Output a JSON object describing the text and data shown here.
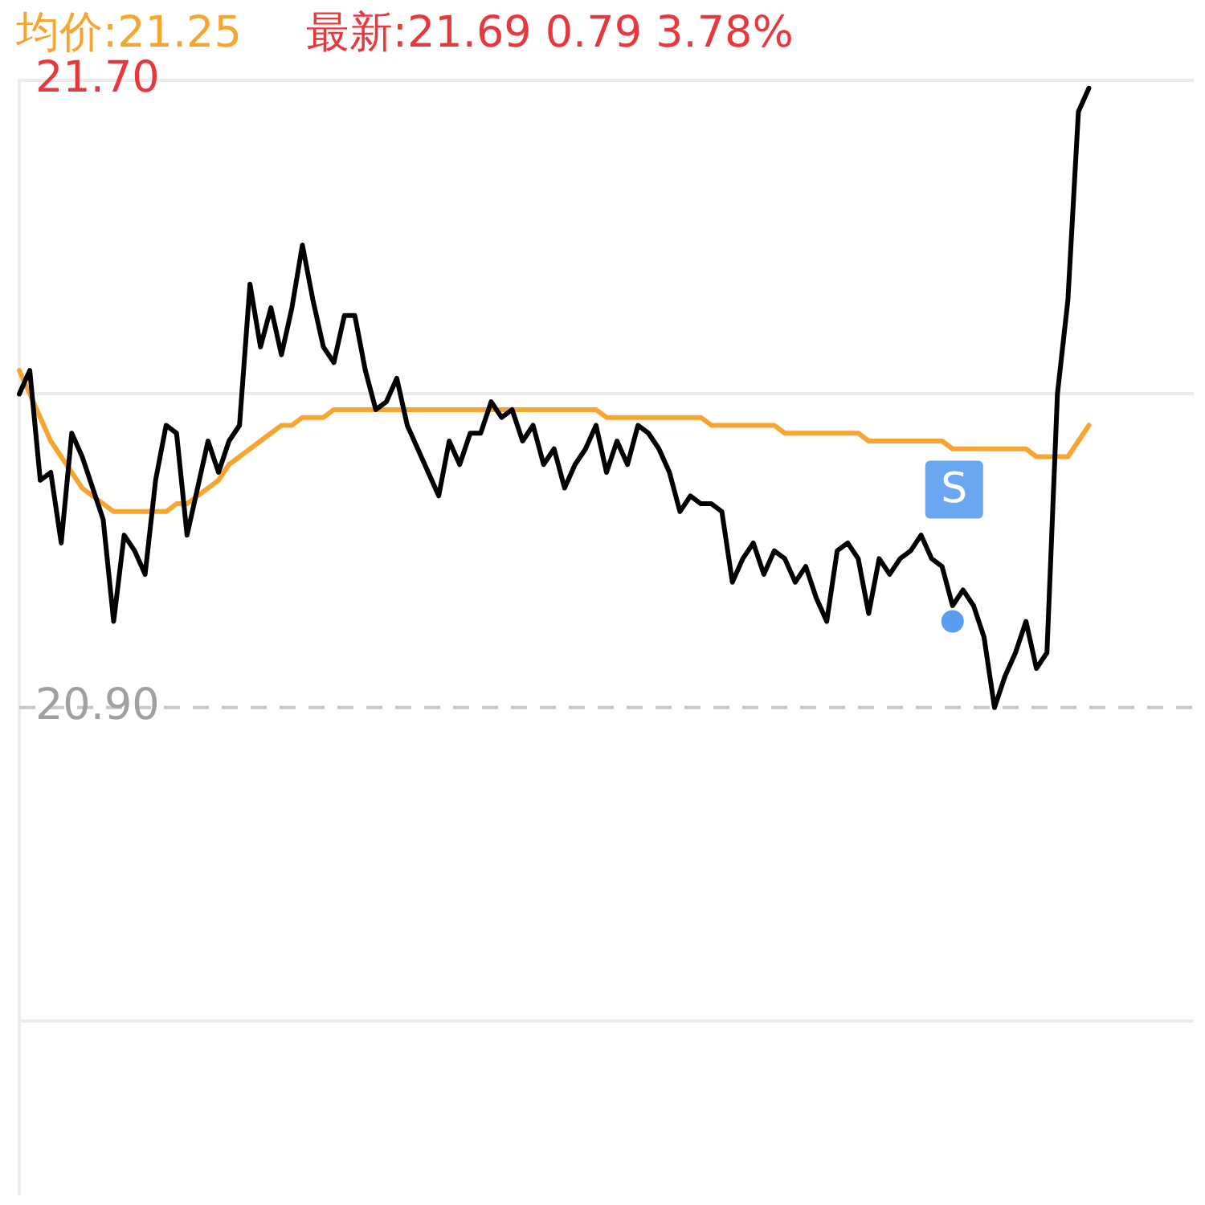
{
  "chart_data": {
    "type": "line",
    "title": "均价:21.25",
    "subtitle": "最新:21.69  0.79  3.78%",
    "categories": [
      null,
      null,
      null,
      null,
      null,
      null,
      null,
      null,
      null,
      null,
      null,
      null,
      null,
      null,
      null,
      null,
      null,
      null,
      null,
      null,
      null,
      null,
      null,
      null,
      null,
      null,
      null,
      null,
      null,
      null,
      null,
      null,
      null,
      null,
      null,
      null,
      null,
      null,
      null,
      null,
      null,
      null,
      null,
      null,
      null,
      null,
      null,
      null,
      null,
      null,
      null,
      null,
      null,
      null,
      null,
      null,
      null,
      null,
      null,
      null,
      null,
      null,
      null,
      null,
      null,
      null,
      null,
      null,
      null,
      null,
      null,
      null,
      null,
      null,
      null,
      null,
      null,
      null,
      null,
      null,
      null,
      null,
      null,
      null,
      null,
      null,
      null,
      null,
      null,
      null,
      null,
      null,
      null,
      null,
      null,
      null,
      null,
      null,
      null,
      null,
      null,
      null,
      null,
      null,
      null,
      null,
      null,
      null,
      null,
      null,
      null,
      null,
      null
    ],
    "series": [
      {
        "color": "#000000",
        "values": [
          21.3,
          21.33,
          21.19,
          21.2,
          21.11,
          21.25,
          21.22,
          21.18,
          21.14,
          21.01,
          21.12,
          21.1,
          21.07,
          21.19,
          21.26,
          21.25,
          21.12,
          21.18,
          21.24,
          21.2,
          21.24,
          21.26,
          21.44,
          21.36,
          21.41,
          21.35,
          21.41,
          21.49,
          21.42,
          21.36,
          21.34,
          21.4,
          21.4,
          21.33,
          21.28,
          21.29,
          21.32,
          21.26,
          21.23,
          21.2,
          21.17,
          21.24,
          21.21,
          21.25,
          21.25,
          21.29,
          21.27,
          21.28,
          21.24,
          21.26,
          21.21,
          21.23,
          21.18,
          21.21,
          21.23,
          21.26,
          21.2,
          21.24,
          21.21,
          21.26,
          21.25,
          21.23,
          21.2,
          21.15,
          21.17,
          21.16,
          21.16,
          21.15,
          21.06,
          21.09,
          21.11,
          21.07,
          21.1,
          21.09,
          21.06,
          21.08,
          21.04,
          21.01,
          21.1,
          21.11,
          21.09,
          21.02,
          21.09,
          21.07,
          21.09,
          21.1,
          21.12,
          21.09,
          21.08,
          21.03,
          21.05,
          21.03,
          20.99,
          20.9,
          20.94,
          20.97,
          21.01,
          20.95,
          20.97,
          21.3,
          21.42,
          21.66,
          21.69,
          null,
          null,
          null,
          null,
          null,
          null,
          null,
          null,
          null,
          null
        ]
      },
      {
        "color": "#f7a531",
        "values": [
          21.33,
          21.3,
          21.27,
          21.24,
          21.22,
          21.2,
          21.18,
          21.17,
          21.16,
          21.15,
          21.15,
          21.15,
          21.15,
          21.15,
          21.15,
          21.16,
          21.16,
          21.17,
          21.18,
          21.19,
          21.21,
          21.22,
          21.23,
          21.24,
          21.25,
          21.26,
          21.26,
          21.27,
          21.27,
          21.27,
          21.28,
          21.28,
          21.28,
          21.28,
          21.28,
          21.28,
          21.28,
          21.28,
          21.28,
          21.28,
          21.28,
          21.28,
          21.28,
          21.28,
          21.28,
          21.28,
          21.28,
          21.28,
          21.28,
          21.28,
          21.28,
          21.28,
          21.28,
          21.28,
          21.28,
          21.28,
          21.27,
          21.27,
          21.27,
          21.27,
          21.27,
          21.27,
          21.27,
          21.27,
          21.27,
          21.27,
          21.26,
          21.26,
          21.26,
          21.26,
          21.26,
          21.26,
          21.26,
          21.25,
          21.25,
          21.25,
          21.25,
          21.25,
          21.25,
          21.25,
          21.25,
          21.24,
          21.24,
          21.24,
          21.24,
          21.24,
          21.24,
          21.24,
          21.24,
          21.23,
          21.23,
          21.23,
          21.23,
          21.23,
          21.23,
          21.23,
          21.23,
          21.22,
          21.22,
          21.22,
          21.22,
          21.24,
          21.26,
          null,
          null,
          null,
          null,
          null,
          null,
          null,
          null,
          null,
          null
        ]
      },
      {
        "type": "scatter",
        "color": "#5b9cf0",
        "values": [
          null,
          null,
          null,
          null,
          null,
          null,
          null,
          null,
          null,
          null,
          null,
          null,
          null,
          null,
          null,
          null,
          null,
          null,
          null,
          null,
          null,
          null,
          null,
          null,
          null,
          null,
          null,
          null,
          null,
          null,
          null,
          null,
          null,
          null,
          null,
          null,
          null,
          null,
          null,
          null,
          null,
          null,
          null,
          null,
          null,
          null,
          null,
          null,
          null,
          null,
          null,
          null,
          null,
          null,
          null,
          null,
          null,
          null,
          null,
          null,
          null,
          null,
          null,
          null,
          null,
          null,
          null,
          null,
          null,
          null,
          null,
          null,
          null,
          null,
          null,
          null,
          null,
          null,
          null,
          null,
          null,
          null,
          null,
          null,
          null,
          null,
          null,
          null,
          null,
          21.01,
          null,
          null,
          null,
          null,
          null,
          null,
          null,
          null,
          null,
          null,
          null,
          null,
          null,
          null,
          null,
          null,
          null,
          null,
          null,
          null,
          null,
          null,
          null
        ]
      }
    ],
    "annotations": [
      "S"
    ],
    "ylim": [
      20.28,
      21.7
    ],
    "yticks": [
      {
        "value": 21.7,
        "label": "21.70"
      },
      {
        "value": 21.3,
        "label": null
      },
      {
        "value": 20.9,
        "label": "20.90"
      },
      {
        "value": 20.5,
        "label": null
      }
    ],
    "ref_lines": [
      {
        "axis": "y",
        "value": 20.9,
        "color": "#c8c8c8",
        "line_style": "dashed"
      }
    ],
    "grid": "y",
    "legend": false
  }
}
